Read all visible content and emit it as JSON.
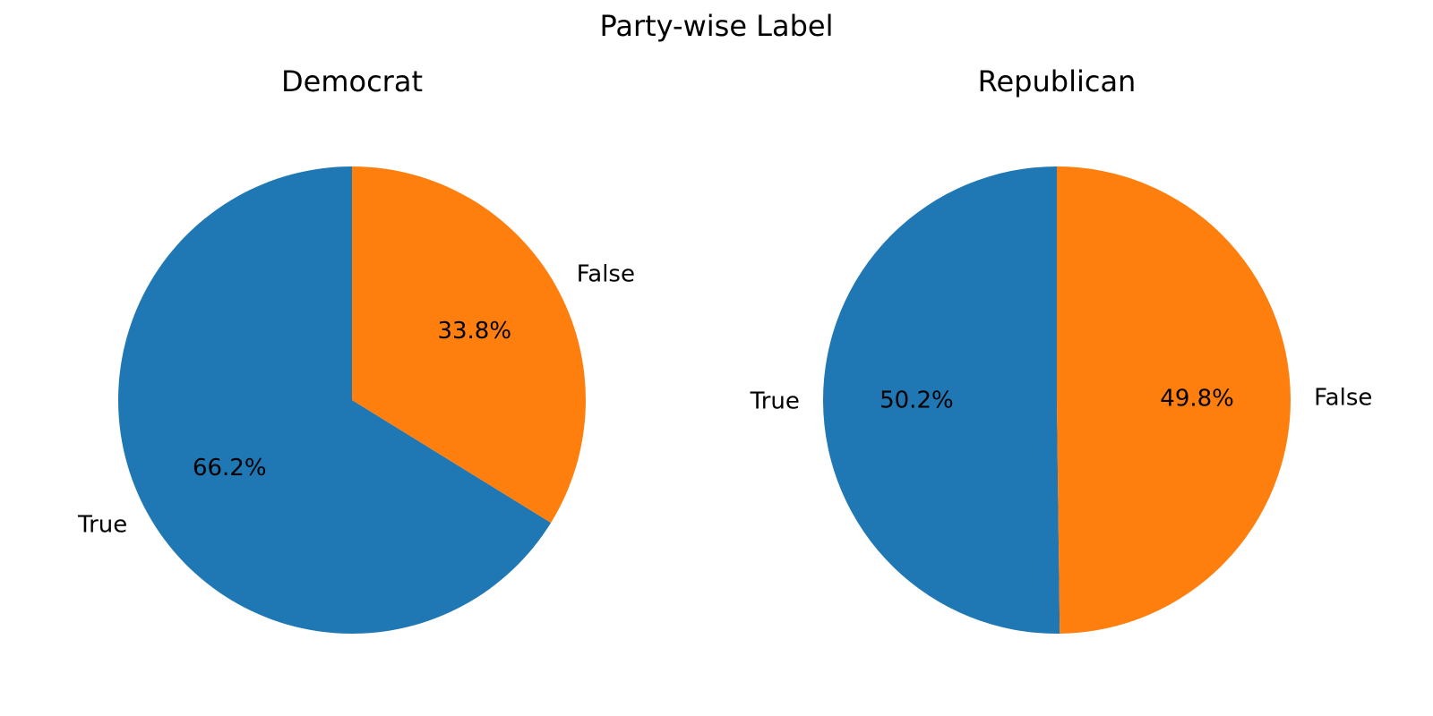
{
  "figure": {
    "suptitle": "Party-wise Label"
  },
  "chart_data": [
    {
      "type": "pie",
      "title": "Democrat",
      "categories": [
        "True",
        "False"
      ],
      "values": [
        66.2,
        33.8
      ],
      "labels": [
        "66.2%",
        "33.8%"
      ],
      "colors": [
        "#1f77b4",
        "#ff7f0e"
      ],
      "start_angle_deg": 90,
      "direction": "counterclockwise"
    },
    {
      "type": "pie",
      "title": "Republican",
      "categories": [
        "True",
        "False"
      ],
      "values": [
        50.2,
        49.8
      ],
      "labels": [
        "50.2%",
        "49.8%"
      ],
      "colors": [
        "#1f77b4",
        "#ff7f0e"
      ],
      "start_angle_deg": 90,
      "direction": "counterclockwise"
    }
  ]
}
